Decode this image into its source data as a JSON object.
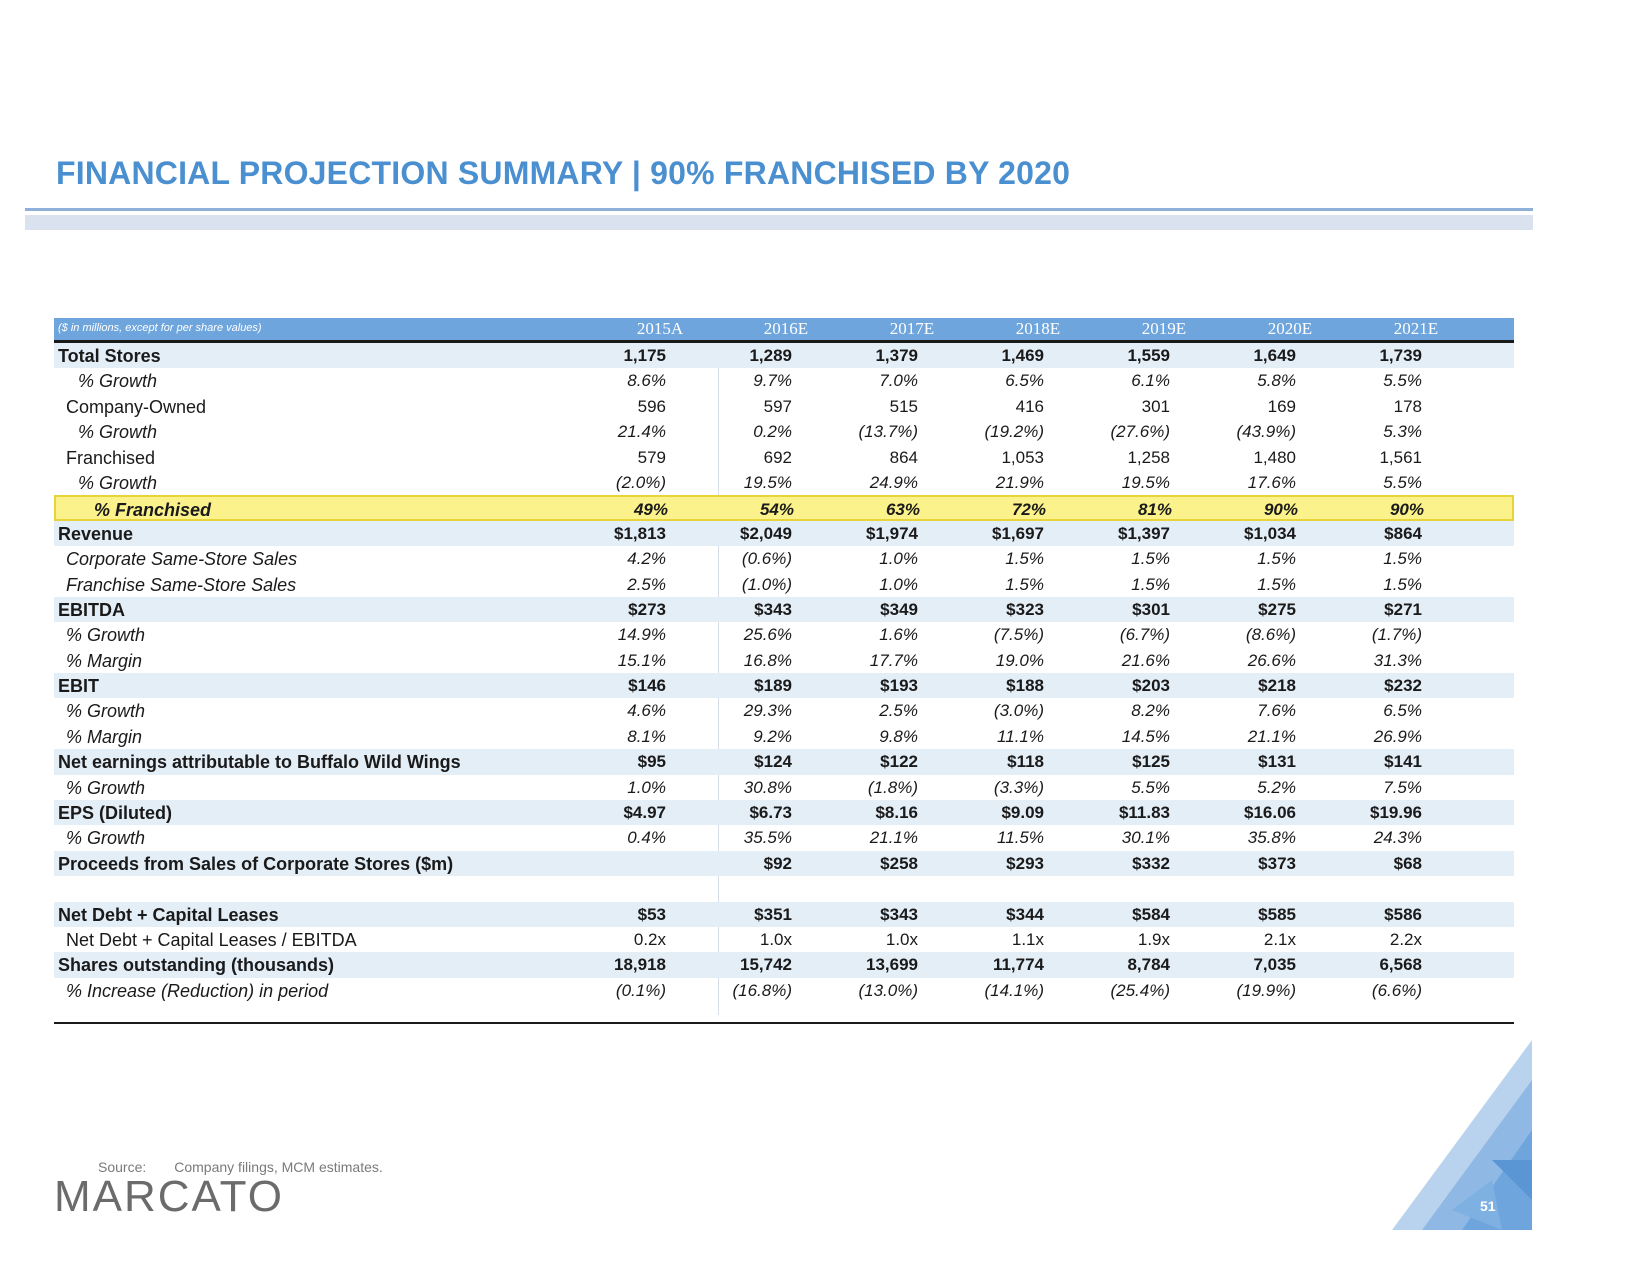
{
  "title": "FINANCIAL PROJECTION SUMMARY | 90% FRANCHISED BY 2020",
  "table": {
    "note": "($ in millions, except for per share values)",
    "years": [
      "2015A",
      "2016E",
      "2017E",
      "2018E",
      "2019E",
      "2020E",
      "2021E"
    ],
    "rows": [
      {
        "label": "Total Stores",
        "style": "bold",
        "indent": 0,
        "shade": true,
        "values": [
          "1,175",
          "1,289",
          "1,379",
          "1,469",
          "1,559",
          "1,649",
          "1,739"
        ]
      },
      {
        "label": "% Growth",
        "style": "ital",
        "indent": 2,
        "shade": false,
        "values": [
          "8.6%",
          "9.7%",
          "7.0%",
          "6.5%",
          "6.1%",
          "5.8%",
          "5.5%"
        ]
      },
      {
        "label": "Company-Owned",
        "style": "plain",
        "indent": 1,
        "shade": false,
        "values": [
          "596",
          "597",
          "515",
          "416",
          "301",
          "169",
          "178"
        ]
      },
      {
        "label": "% Growth",
        "style": "ital",
        "indent": 2,
        "shade": false,
        "values": [
          "21.4%",
          "0.2%",
          "(13.7%)",
          "(19.2%)",
          "(27.6%)",
          "(43.9%)",
          "5.3%"
        ]
      },
      {
        "label": "Franchised",
        "style": "plain",
        "indent": 1,
        "shade": false,
        "values": [
          "579",
          "692",
          "864",
          "1,053",
          "1,258",
          "1,480",
          "1,561"
        ]
      },
      {
        "label": "% Growth",
        "style": "ital",
        "indent": 2,
        "shade": false,
        "values": [
          "(2.0%)",
          "19.5%",
          "24.9%",
          "21.9%",
          "19.5%",
          "17.6%",
          "5.5%"
        ]
      },
      {
        "label": "% Franchised",
        "style": "boldital",
        "indent": 3,
        "shade": false,
        "highlight": true,
        "values": [
          "49%",
          "54%",
          "63%",
          "72%",
          "81%",
          "90%",
          "90%"
        ]
      },
      {
        "label": "Revenue",
        "style": "bold",
        "indent": 0,
        "shade": true,
        "values": [
          "$1,813",
          "$2,049",
          "$1,974",
          "$1,697",
          "$1,397",
          "$1,034",
          "$864"
        ]
      },
      {
        "label": "Corporate Same-Store Sales",
        "style": "ital",
        "indent": 1,
        "shade": false,
        "values": [
          "4.2%",
          "(0.6%)",
          "1.0%",
          "1.5%",
          "1.5%",
          "1.5%",
          "1.5%"
        ]
      },
      {
        "label": "Franchise Same-Store Sales",
        "style": "ital",
        "indent": 1,
        "shade": false,
        "values": [
          "2.5%",
          "(1.0%)",
          "1.0%",
          "1.5%",
          "1.5%",
          "1.5%",
          "1.5%"
        ]
      },
      {
        "label": "EBITDA",
        "style": "bold",
        "indent": 0,
        "shade": true,
        "values": [
          "$273",
          "$343",
          "$349",
          "$323",
          "$301",
          "$275",
          "$271"
        ]
      },
      {
        "label": "% Growth",
        "style": "ital",
        "indent": 1,
        "shade": false,
        "values": [
          "14.9%",
          "25.6%",
          "1.6%",
          "(7.5%)",
          "(6.7%)",
          "(8.6%)",
          "(1.7%)"
        ]
      },
      {
        "label": "% Margin",
        "style": "ital",
        "indent": 1,
        "shade": false,
        "values": [
          "15.1%",
          "16.8%",
          "17.7%",
          "19.0%",
          "21.6%",
          "26.6%",
          "31.3%"
        ]
      },
      {
        "label": "EBIT",
        "style": "bold",
        "indent": 0,
        "shade": true,
        "values": [
          "$146",
          "$189",
          "$193",
          "$188",
          "$203",
          "$218",
          "$232"
        ]
      },
      {
        "label": "% Growth",
        "style": "ital",
        "indent": 1,
        "shade": false,
        "values": [
          "4.6%",
          "29.3%",
          "2.5%",
          "(3.0%)",
          "8.2%",
          "7.6%",
          "6.5%"
        ]
      },
      {
        "label": "% Margin",
        "style": "ital",
        "indent": 1,
        "shade": false,
        "values": [
          "8.1%",
          "9.2%",
          "9.8%",
          "11.1%",
          "14.5%",
          "21.1%",
          "26.9%"
        ]
      },
      {
        "label": "Net earnings attributable to Buffalo Wild Wings",
        "style": "bold",
        "indent": 0,
        "shade": true,
        "values": [
          "$95",
          "$124",
          "$122",
          "$118",
          "$125",
          "$131",
          "$141"
        ]
      },
      {
        "label": "% Growth",
        "style": "ital",
        "indent": 1,
        "shade": false,
        "values": [
          "1.0%",
          "30.8%",
          "(1.8%)",
          "(3.3%)",
          "5.5%",
          "5.2%",
          "7.5%"
        ]
      },
      {
        "label": "EPS (Diluted)",
        "style": "bold",
        "indent": 0,
        "shade": true,
        "values": [
          "$4.97",
          "$6.73",
          "$8.16",
          "$9.09",
          "$11.83",
          "$16.06",
          "$19.96"
        ]
      },
      {
        "label": "% Growth",
        "style": "ital",
        "indent": 1,
        "shade": false,
        "values": [
          "0.4%",
          "35.5%",
          "21.1%",
          "11.5%",
          "30.1%",
          "35.8%",
          "24.3%"
        ]
      },
      {
        "label": "Proceeds from Sales of Corporate Stores ($m)",
        "style": "bold",
        "indent": 0,
        "shade": true,
        "values": [
          "",
          "$92",
          "$258",
          "$293",
          "$332",
          "$373",
          "$68"
        ]
      },
      {
        "gap": true
      },
      {
        "label": "Net Debt + Capital Leases",
        "style": "bold",
        "indent": 0,
        "shade": true,
        "values": [
          "$53",
          "$351",
          "$343",
          "$344",
          "$584",
          "$585",
          "$586"
        ]
      },
      {
        "label": "Net Debt + Capital Leases / EBITDA",
        "style": "plain",
        "indent": 1,
        "shade": false,
        "values": [
          "0.2x",
          "1.0x",
          "1.0x",
          "1.1x",
          "1.9x",
          "2.1x",
          "2.2x"
        ]
      },
      {
        "label": "Shares outstanding (thousands)",
        "style": "bold",
        "indent": 0,
        "shade": true,
        "values": [
          "18,918",
          "15,742",
          "13,699",
          "11,774",
          "8,784",
          "7,035",
          "6,568"
        ]
      },
      {
        "label": "% Increase (Reduction) in period",
        "style": "ital",
        "indent": 1,
        "shade": false,
        "values": [
          "(0.1%)",
          "(16.8%)",
          "(13.0%)",
          "(14.1%)",
          "(25.4%)",
          "(19.9%)",
          "(6.6%)"
        ]
      }
    ]
  },
  "footer": {
    "source_label": "Source:",
    "source_text": "Company filings, MCM estimates.",
    "logo": "MARCATO",
    "page_number": "51"
  },
  "colors": {
    "title": "#4a8fd0",
    "header": "#6fa5dd",
    "shade": "#e4eef7",
    "highlight": "#fbf28c"
  }
}
